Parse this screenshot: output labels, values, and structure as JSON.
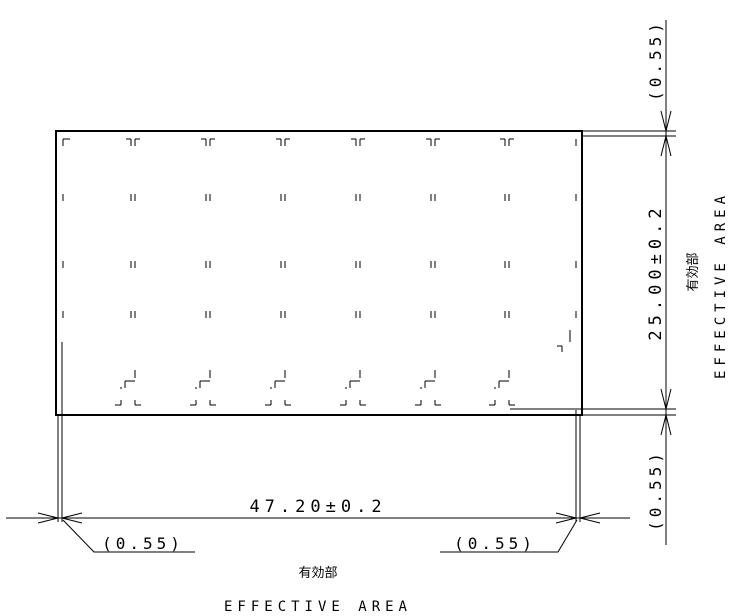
{
  "dimensions": {
    "width": "47.20±0.2",
    "height": "25.00±0.2",
    "left_margin": "(0.55)",
    "right_margin": "(0.55)",
    "top_margin": "(0.55)",
    "bottom_margin": "(0.55)"
  },
  "labels": {
    "effective_area_jp": "有効部",
    "effective_area_en": "EFFECTIVE AREA"
  },
  "colors": {
    "line": "#000000",
    "background": "#ffffff"
  }
}
